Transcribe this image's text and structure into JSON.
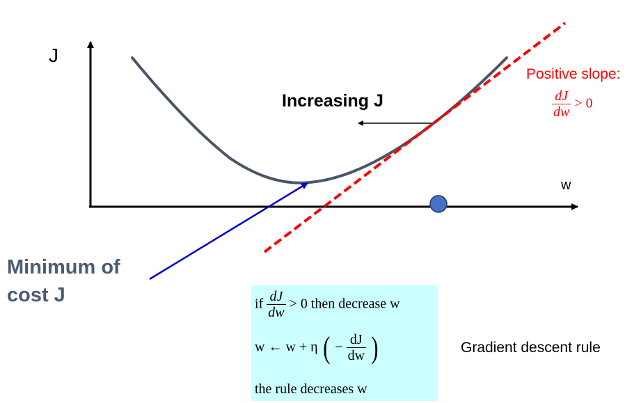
{
  "axes": {
    "y_label": "J",
    "x_label": "w"
  },
  "annotations": {
    "increasing": "Increasing J",
    "positive_slope": "Positive slope:",
    "slope_inequality": {
      "numerator": "dJ",
      "denominator": "dw",
      "relation": "> 0"
    },
    "minimum_line1": "Minimum of",
    "minimum_line2": "cost J",
    "gradient_rule_label": "Gradient descent rule"
  },
  "rule_box": {
    "line1": {
      "prefix": "if",
      "numerator": "dJ",
      "denominator": "dw",
      "suffix": "> 0 then  decrease w"
    },
    "line2": {
      "prefix": "w ← w + η",
      "minus": "−",
      "numerator": "dJ",
      "denominator": "dw"
    },
    "line3": "the rule decreases w"
  },
  "colors": {
    "curve": "#4a5568",
    "tangent": "#ff0000",
    "pointer_arrow": "#0000cc",
    "point_fill": "#4472c4",
    "rule_box_bg": "#ccffff",
    "minimum_text": "#4d5a73",
    "slope_text": "#ff0000"
  }
}
